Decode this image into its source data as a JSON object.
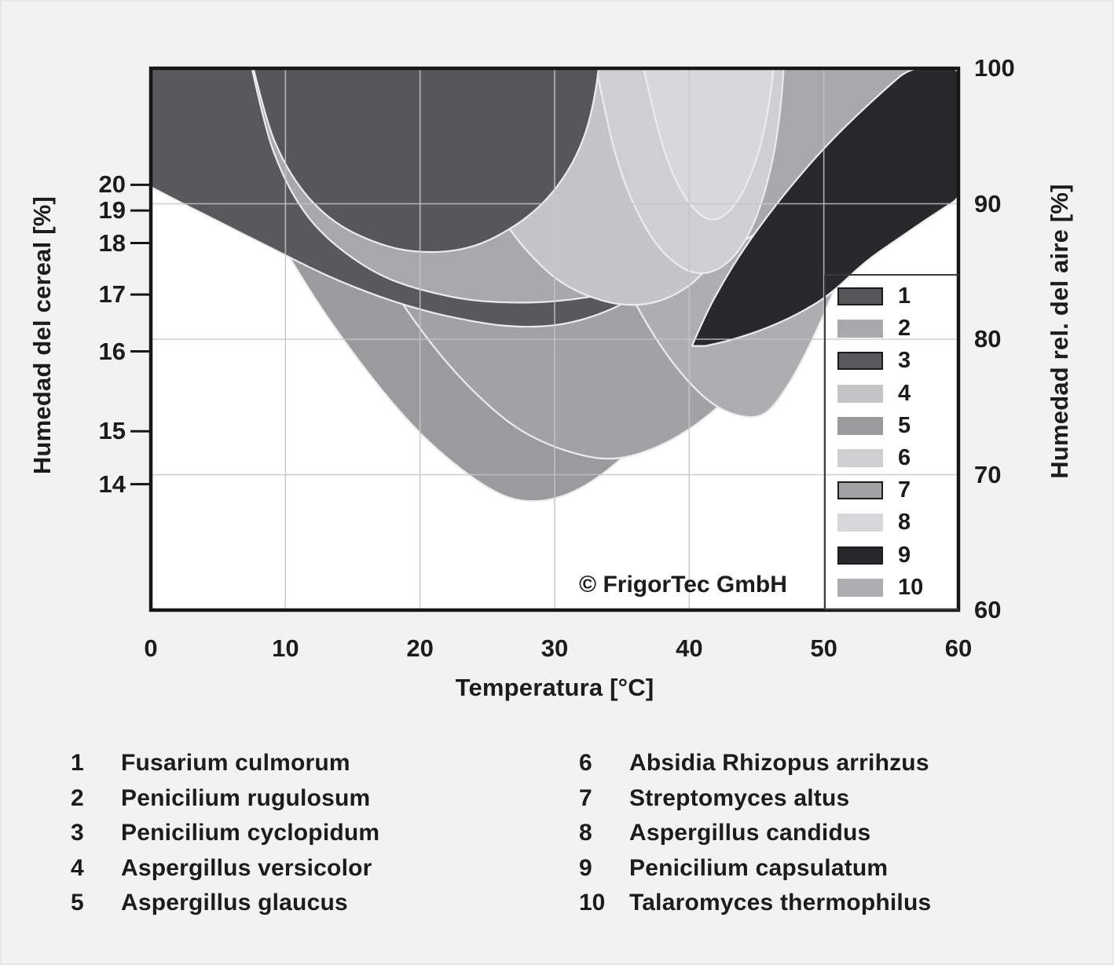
{
  "watermark": "© FrigorTec GmbH",
  "axes": {
    "x": {
      "title": "Temperatura [°C]",
      "ticks": [
        "0",
        "10",
        "20",
        "30",
        "40",
        "50",
        "60"
      ],
      "range": [
        0,
        60
      ]
    },
    "left": {
      "title": "Humedad del cereal [%]",
      "ticks": [
        {
          "label": "20",
          "rh": 91.4
        },
        {
          "label": "19",
          "rh": 89.5
        },
        {
          "label": "18",
          "rh": 87.1
        },
        {
          "label": "17",
          "rh": 83.3
        },
        {
          "label": "16",
          "rh": 79.1
        },
        {
          "label": "15",
          "rh": 73.2
        },
        {
          "label": "14",
          "rh": 69.3
        }
      ]
    },
    "right": {
      "title": "Humedad rel. del aire [%]",
      "ticks": [
        "100",
        "90",
        "80",
        "70",
        "60"
      ],
      "range": [
        60,
        100
      ]
    }
  },
  "legend": {
    "items": [
      {
        "label": "1",
        "color": "#57575a",
        "bordered": true
      },
      {
        "label": "2",
        "color": "#a9a9ac",
        "bordered": false
      },
      {
        "label": "3",
        "color": "#59595c",
        "bordered": true
      },
      {
        "label": "4",
        "color": "#c5c5c8",
        "bordered": false
      },
      {
        "label": "5",
        "color": "#9b9b9e",
        "bordered": false
      },
      {
        "label": "6",
        "color": "#cfcfd2",
        "bordered": false
      },
      {
        "label": "7",
        "color": "#a2a2a5",
        "bordered": true
      },
      {
        "label": "8",
        "color": "#d8d8da",
        "bordered": false
      },
      {
        "label": "9",
        "color": "#29292c",
        "bordered": true
      },
      {
        "label": "10",
        "color": "#aeaeb1",
        "bordered": false
      }
    ]
  },
  "species": {
    "col1": [
      {
        "num": "1",
        "name": "Fusarium culmorum"
      },
      {
        "num": "2",
        "name": "Penicilium rugulosum"
      },
      {
        "num": "3",
        "name": "Penicilium cyclopidum"
      },
      {
        "num": "4",
        "name": "Aspergillus versicolor"
      },
      {
        "num": "5",
        "name": "Aspergillus glaucus"
      }
    ],
    "col2": [
      {
        "num": "6",
        "name": "Absidia Rhizopus arrihzus"
      },
      {
        "num": "7",
        "name": "Streptomyces altus"
      },
      {
        "num": "8",
        "name": "Aspergillus candidus"
      },
      {
        "num": "9",
        "name": "Penicilium capsulatum"
      },
      {
        "num": "10",
        "name": "Talaromyces thermophilus"
      }
    ]
  },
  "chart_data": {
    "type": "area",
    "title": "",
    "xlabel": "Temperatura [°C]",
    "ylabel_left": "Humedad del cereal [%]",
    "ylabel_right": "Humedad rel. del aire [%]",
    "x_range": [
      0,
      60
    ],
    "y_right_range": [
      60,
      100
    ],
    "grid": {
      "x": [
        10,
        20,
        30,
        40,
        50
      ],
      "y_rh": [
        90,
        80,
        70
      ]
    },
    "note": "Each region = conditions (temperature °C, relative air humidity %) allowing growth of the numbered organism; points are [T, RH] polygon outlines in z-paint order.",
    "regions": [
      {
        "id": "5",
        "species": "Aspergillus glaucus",
        "color": "#9b9b9e",
        "points": [
          [
            2.5,
            100.5
          ],
          [
            5,
            95.5
          ],
          [
            7.5,
            91
          ],
          [
            10,
            86.5
          ],
          [
            12.5,
            82.5
          ],
          [
            15,
            79
          ],
          [
            17.5,
            75.8
          ],
          [
            20,
            73
          ],
          [
            22.5,
            70.8
          ],
          [
            25,
            69
          ],
          [
            27,
            68.1
          ],
          [
            29,
            68
          ],
          [
            31,
            68.5
          ],
          [
            33,
            69.6
          ],
          [
            35,
            71.2
          ],
          [
            37.5,
            73.4
          ],
          [
            40,
            76.2
          ],
          [
            42.5,
            79.4
          ],
          [
            45,
            83
          ],
          [
            47.5,
            87
          ],
          [
            50,
            91.2
          ],
          [
            52.5,
            95.6
          ],
          [
            54.8,
            100.5
          ],
          [
            54.8,
            105
          ],
          [
            2.5,
            105
          ]
        ]
      },
      {
        "id": "7",
        "species": "Streptomyces altus",
        "color": "#a2a2a5",
        "points": [
          [
            9.5,
            100.5
          ],
          [
            12,
            94.5
          ],
          [
            14.5,
            89.5
          ],
          [
            17,
            85.2
          ],
          [
            19.5,
            81.4
          ],
          [
            22,
            78.2
          ],
          [
            24.5,
            75.6
          ],
          [
            27,
            73.5
          ],
          [
            29.5,
            72.2
          ],
          [
            32,
            71.4
          ],
          [
            34,
            71.1
          ],
          [
            36,
            71.4
          ],
          [
            38.5,
            72.4
          ],
          [
            41,
            74
          ],
          [
            43.5,
            76.2
          ],
          [
            46,
            79
          ],
          [
            48.5,
            82.3
          ],
          [
            51,
            86
          ],
          [
            53.5,
            90
          ],
          [
            56,
            94.3
          ],
          [
            58.5,
            98.8
          ],
          [
            60.5,
            100.5
          ],
          [
            60.5,
            105
          ],
          [
            9.5,
            105
          ]
        ]
      },
      {
        "id": "10",
        "species": "Talaromyces thermophilus",
        "color": "#aeaeb1",
        "points": [
          [
            29.5,
            100.5
          ],
          [
            31.5,
            93.5
          ],
          [
            33.5,
            88
          ],
          [
            35.5,
            83.5
          ],
          [
            37.5,
            80
          ],
          [
            39.5,
            77.3
          ],
          [
            41.5,
            75.3
          ],
          [
            43.5,
            74.3
          ],
          [
            45.5,
            74.2
          ],
          [
            47,
            76
          ],
          [
            48.5,
            78.6
          ],
          [
            50,
            81.8
          ],
          [
            51.5,
            85.4
          ],
          [
            53,
            89.3
          ],
          [
            54.5,
            93.4
          ],
          [
            56,
            97.6
          ],
          [
            57.2,
            100.8
          ],
          [
            57.2,
            105
          ],
          [
            29.5,
            105
          ]
        ]
      },
      {
        "id": "3",
        "species": "Penicilium cyclopidum",
        "color": "#59595c",
        "points": [
          [
            -0.5,
            91.5
          ],
          [
            2,
            90.2
          ],
          [
            4,
            89.2
          ],
          [
            6,
            88.2
          ],
          [
            8,
            87.2
          ],
          [
            10,
            86.2
          ],
          [
            12,
            85.2
          ],
          [
            14,
            84.3
          ],
          [
            16,
            83.5
          ],
          [
            18,
            82.8
          ],
          [
            20,
            82.2
          ],
          [
            22,
            81.7
          ],
          [
            24,
            81.3
          ],
          [
            26,
            81
          ],
          [
            28,
            80.9
          ],
          [
            30,
            81
          ],
          [
            32,
            81.4
          ],
          [
            34,
            82.1
          ],
          [
            36,
            83.1
          ],
          [
            38,
            84.4
          ],
          [
            40,
            86
          ],
          [
            42,
            87.8
          ],
          [
            44,
            89.8
          ],
          [
            46,
            92
          ],
          [
            48,
            94.5
          ],
          [
            50,
            97.2
          ],
          [
            52,
            100.4
          ],
          [
            52,
            105
          ],
          [
            -0.5,
            105
          ]
        ]
      },
      {
        "id": "2",
        "species": "Penicilium rugulosum",
        "color": "#a9a9ac",
        "points": [
          [
            7.4,
            100.5
          ],
          [
            8.5,
            95.5
          ],
          [
            9.7,
            92.3
          ],
          [
            11,
            89.9
          ],
          [
            12.5,
            88
          ],
          [
            14.5,
            86.3
          ],
          [
            16.5,
            85
          ],
          [
            18.5,
            84.1
          ],
          [
            21,
            83.4
          ],
          [
            23.5,
            82.9
          ],
          [
            26,
            82.7
          ],
          [
            29,
            82.7
          ],
          [
            32,
            83
          ],
          [
            35,
            83.6
          ],
          [
            38,
            84.5
          ],
          [
            41,
            85.7
          ],
          [
            44,
            87.2
          ],
          [
            47,
            89.1
          ],
          [
            50,
            91.4
          ],
          [
            53,
            94.2
          ],
          [
            56,
            97.5
          ],
          [
            58.2,
            100.4
          ],
          [
            58.2,
            105
          ],
          [
            7.4,
            105
          ]
        ]
      },
      {
        "id": "4",
        "species": "Aspergillus versicolor",
        "color": "#c5c5c8",
        "points": [
          [
            21,
            100.5
          ],
          [
            22.5,
            95.8
          ],
          [
            24,
            92.5
          ],
          [
            25.5,
            89.8
          ],
          [
            27,
            87.6
          ],
          [
            28.5,
            85.9
          ],
          [
            30,
            84.5
          ],
          [
            31.5,
            83.6
          ],
          [
            33,
            83
          ],
          [
            34.5,
            82.6
          ],
          [
            36,
            82.5
          ],
          [
            37.5,
            82.7
          ],
          [
            39,
            83.3
          ],
          [
            40.5,
            84.3
          ],
          [
            42,
            86
          ],
          [
            43.3,
            88.3
          ],
          [
            44.3,
            91.3
          ],
          [
            45.1,
            95
          ],
          [
            45.7,
            100.5
          ],
          [
            45.7,
            105
          ],
          [
            21,
            105
          ]
        ]
      },
      {
        "id": "6",
        "species": "Absidia Rhizopus arrihzus",
        "color": "#cfcfd2",
        "points": [
          [
            33,
            100.5
          ],
          [
            34,
            95.5
          ],
          [
            35,
            92
          ],
          [
            36.2,
            89.2
          ],
          [
            37.5,
            87
          ],
          [
            39,
            85.5
          ],
          [
            40.5,
            84.8
          ],
          [
            42,
            85
          ],
          [
            43.5,
            86.2
          ],
          [
            44.8,
            88.4
          ],
          [
            45.8,
            91.4
          ],
          [
            46.6,
            95.2
          ],
          [
            47.1,
            100.5
          ],
          [
            47.1,
            105
          ],
          [
            33,
            105
          ]
        ]
      },
      {
        "id": "8",
        "species": "Aspergillus candidus",
        "color": "#d8d8da",
        "points": [
          [
            36.5,
            100.5
          ],
          [
            37.6,
            95.5
          ],
          [
            38.8,
            92
          ],
          [
            40.2,
            89.6
          ],
          [
            41.7,
            88.6
          ],
          [
            43.2,
            89.5
          ],
          [
            44.5,
            91.8
          ],
          [
            45.6,
            95.2
          ],
          [
            46.4,
            100.5
          ],
          [
            46.4,
            105
          ],
          [
            36.5,
            105
          ]
        ]
      },
      {
        "id": "1",
        "species": "Fusarium culmorum",
        "color": "#57575a",
        "points": [
          [
            7.5,
            100.5
          ],
          [
            8.6,
            96
          ],
          [
            9.8,
            93.2
          ],
          [
            11.2,
            91
          ],
          [
            12.8,
            89.3
          ],
          [
            14.5,
            88.1
          ],
          [
            16.5,
            87.2
          ],
          [
            18.5,
            86.6
          ],
          [
            20.5,
            86.4
          ],
          [
            22.5,
            86.5
          ],
          [
            24.5,
            87
          ],
          [
            26.5,
            88
          ],
          [
            28.5,
            89.4
          ],
          [
            30.2,
            91.2
          ],
          [
            31.7,
            93.6
          ],
          [
            32.7,
            96.4
          ],
          [
            33.4,
            100.5
          ],
          [
            33.4,
            105
          ],
          [
            7.5,
            105
          ]
        ]
      },
      {
        "id": "9",
        "species": "Penicilium capsulatum",
        "color": "#29292c",
        "points": [
          [
            40.2,
            79.5
          ],
          [
            41.2,
            81.8
          ],
          [
            42.5,
            84.2
          ],
          [
            44,
            86.6
          ],
          [
            45.8,
            89.1
          ],
          [
            47.8,
            91.6
          ],
          [
            50,
            94.1
          ],
          [
            52.3,
            96.4
          ],
          [
            54.6,
            98.5
          ],
          [
            56.6,
            100.2
          ],
          [
            61,
            100.2
          ],
          [
            61,
            91
          ],
          [
            58,
            89.1
          ],
          [
            55.5,
            87.4
          ],
          [
            53,
            85.7
          ],
          [
            50.5,
            83.3
          ],
          [
            48,
            81.8
          ],
          [
            45.5,
            80.7
          ],
          [
            43,
            79.9
          ],
          [
            41.2,
            79.5
          ]
        ]
      }
    ]
  }
}
